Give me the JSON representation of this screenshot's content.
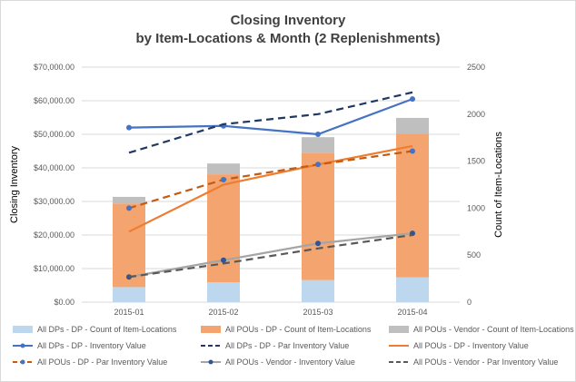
{
  "chart_data": {
    "type": "bar",
    "title_line1": "Closing Inventory",
    "title_line2": "by Item-Locations & Month  (2 Replenishments)",
    "categories": [
      "2015-01",
      "2015-02",
      "2015-03",
      "2015-04"
    ],
    "ylabel": "Closing Inventory",
    "y2label": "Count of Item-Locations",
    "ylim": [
      0,
      70000
    ],
    "y2lim": [
      0,
      2500
    ],
    "yticks": [
      "$0.00",
      "$10,000.00",
      "$20,000.00",
      "$30,000.00",
      "$40,000.00",
      "$50,000.00",
      "$60,000.00",
      "$70,000.00"
    ],
    "y2ticks": [
      "0",
      "500",
      "1000",
      "1500",
      "2000",
      "2500"
    ],
    "stacked_bars_right_axis": [
      {
        "name": "All DPs - DP - Count of Item-Locations",
        "color": "#bdd7ee",
        "values": [
          160,
          210,
          235,
          265
        ]
      },
      {
        "name": "All POUs - DP - Count of Item-Locations",
        "color": "#f4a46e",
        "values": [
          890,
          1150,
          1355,
          1525
        ]
      },
      {
        "name": "All POUs - Vendor - Count of Item-Locations",
        "color": "#bfbfbf",
        "values": [
          70,
          115,
          165,
          170
        ]
      }
    ],
    "lines_left_axis": [
      {
        "name": "All DPs - DP - Inventory Value",
        "color": "#4472c4",
        "dash": "solid",
        "marker": true,
        "values": [
          52000,
          52500,
          50000,
          60500
        ]
      },
      {
        "name": "All DPs - DP - Par Inventory Value",
        "color": "#203864",
        "dash": "dashed",
        "marker": false,
        "values": [
          44500,
          53000,
          56000,
          62500
        ]
      },
      {
        "name": "All POUs - DP - Inventory Value",
        "color": "#ed7d31",
        "dash": "solid",
        "marker": false,
        "values": [
          21000,
          35000,
          41000,
          46500
        ]
      },
      {
        "name": "All POUs - DP - Par Inventory Value",
        "color": "#c55a11",
        "dash": "dashed",
        "marker": true,
        "marker_color": "#4472c4",
        "values": [
          28000,
          36500,
          41000,
          45000
        ]
      },
      {
        "name": "All POUs - Vendor - Inventory Value",
        "color": "#a5a5a5",
        "dash": "solid",
        "marker": true,
        "marker_color": "#2f5597",
        "values": [
          7500,
          12500,
          17500,
          20500
        ]
      },
      {
        "name": "All POUs - Vendor - Par Inventory Value",
        "color": "#595959",
        "dash": "dashed",
        "marker": false,
        "values": [
          7500,
          11500,
          16000,
          20000
        ]
      }
    ]
  }
}
